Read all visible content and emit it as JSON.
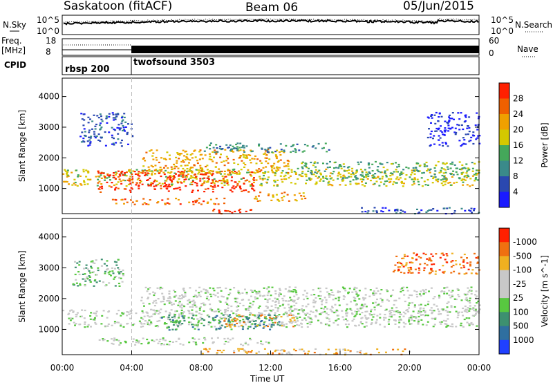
{
  "header": {
    "station": "Saskatoon (fitACF)",
    "beam": "Beam 06",
    "date": "05/Jun/2015"
  },
  "strip_labels": {
    "nsky": "N.Sky",
    "nsearch": "N.Search",
    "freq_line1": "Freq.",
    "freq_line2": "[MHz]",
    "nave": "Nave",
    "cpid": "CPID",
    "noise_ticks": [
      "10^5",
      "10^0"
    ],
    "noise_ticks_right": [
      "10^5",
      "10^0"
    ],
    "freq_ticks": [
      "18",
      "8"
    ],
    "nave_ticks": [
      "60",
      "0"
    ]
  },
  "cpid_segments": [
    {
      "label": "rbsp 200",
      "start_hour": 0
    },
    {
      "label": "twofsound 3503",
      "start_hour": 4
    }
  ],
  "chart_data": [
    {
      "type": "heatmap",
      "ylabel": "Slant Range [km]",
      "xlim": [
        0,
        24
      ],
      "ylim": [
        180,
        4600
      ],
      "yticks": [
        1000,
        2000,
        3000,
        4000
      ],
      "colorbar_label": "Power [dB]",
      "colorbar_ticks": [
        "4",
        "8",
        "12",
        "16",
        "20",
        "24",
        "28"
      ],
      "colorbar_colors": [
        "#1a1aff",
        "#2a48b0",
        "#3a8a8a",
        "#44a85a",
        "#d4c800",
        "#f0a000",
        "#f06000",
        "#ff2000"
      ],
      "bands": [
        {
          "x0": 0.0,
          "x1": 24.0,
          "r0": 1100,
          "r1": 1650,
          "level": 4
        },
        {
          "x0": 2.0,
          "x1": 11.0,
          "r0": 900,
          "r1": 1600,
          "level": 7
        },
        {
          "x0": 4.5,
          "x1": 13.0,
          "r0": 1500,
          "r1": 2300,
          "level": 5
        },
        {
          "x0": 2.5,
          "x1": 9.5,
          "r0": 500,
          "r1": 700,
          "level": 6
        },
        {
          "x0": 11.0,
          "x1": 14.0,
          "r0": 600,
          "r1": 900,
          "level": 5
        },
        {
          "x0": 8.5,
          "x1": 11.0,
          "r0": 200,
          "r1": 350,
          "level": 7
        },
        {
          "x0": 13.5,
          "x1": 24.0,
          "r0": 1300,
          "r1": 1900,
          "level": 3
        },
        {
          "x0": 1.0,
          "x1": 4.0,
          "r0": 2400,
          "r1": 3500,
          "level": 1
        },
        {
          "x0": 8.0,
          "x1": 15.5,
          "r0": 2200,
          "r1": 2500,
          "level": 2
        },
        {
          "x0": 17.0,
          "x1": 24.0,
          "r0": 200,
          "r1": 400,
          "level": 1
        },
        {
          "x0": 21.0,
          "x1": 24.0,
          "r0": 2400,
          "r1": 3500,
          "level": 0
        }
      ]
    },
    {
      "type": "heatmap",
      "ylabel": "Slant Range [km]",
      "xlabel": "Time UT",
      "xlim": [
        0,
        24
      ],
      "ylim": [
        180,
        4600
      ],
      "yticks": [
        1000,
        2000,
        3000,
        4000
      ],
      "xticks": [
        "00:00",
        "04:00",
        "08:00",
        "12:00",
        "16:00",
        "20:00",
        "00:00"
      ],
      "colorbar_label": "Velocity [m s^-1]",
      "colorbar_ticks": [
        "1000",
        "500",
        "100",
        "25",
        "-25",
        "-100",
        "-500",
        "-1000"
      ],
      "colorbar_colors": [
        "#2040ff",
        "#2f6fa0",
        "#3d9070",
        "#58c840",
        "#c8c8c8",
        "#c8c8c8",
        "#f0b020",
        "#f07010",
        "#ff2000"
      ],
      "bands": [
        {
          "x0": 0.0,
          "x1": 24.0,
          "r0": 1100,
          "r1": 1650,
          "level": 4
        },
        {
          "x0": 4.5,
          "x1": 24.0,
          "r0": 1500,
          "r1": 2400,
          "level": 4
        },
        {
          "x0": 5.5,
          "x1": 12.5,
          "r0": 1000,
          "r1": 1500,
          "level": 2
        },
        {
          "x0": 9.0,
          "x1": 13.5,
          "r0": 1100,
          "r1": 1500,
          "level": 6
        },
        {
          "x0": 0.5,
          "x1": 3.5,
          "r0": 2400,
          "r1": 3300,
          "level": 3
        },
        {
          "x0": 2.0,
          "x1": 12.0,
          "r0": 500,
          "r1": 750,
          "level": 4
        },
        {
          "x0": 8.0,
          "x1": 20.0,
          "r0": 200,
          "r1": 400,
          "level": 6
        },
        {
          "x0": 19.0,
          "x1": 24.0,
          "r0": 2800,
          "r1": 3500,
          "level": 7
        }
      ]
    }
  ]
}
